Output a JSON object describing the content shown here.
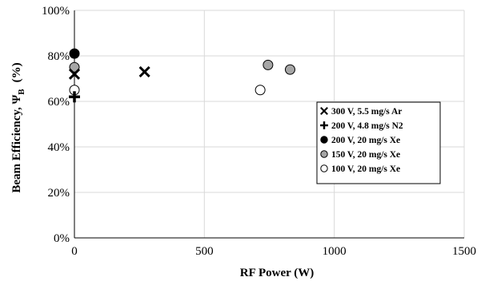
{
  "chart_data": {
    "type": "scatter",
    "xlabel": "RF Power (W)",
    "ylabel": "Beam Efficiency, Ψ",
    "ylabel_subscript": "B",
    "ylabel_unit": "(%)",
    "xlim": [
      0,
      1500
    ],
    "ylim": [
      0,
      100
    ],
    "x_ticks": [
      0,
      500,
      1000,
      1500
    ],
    "y_ticks": [
      0,
      20,
      40,
      60,
      80,
      100
    ],
    "y_tick_labels": [
      "0%",
      "20%",
      "40%",
      "60%",
      "80%",
      "100%"
    ],
    "grid": true,
    "legend_position": "right",
    "series": [
      {
        "name": "300 V, 5.5 mg/s Ar",
        "marker": "x-cross",
        "color": "#000000",
        "points": [
          [
            0,
            72
          ],
          [
            270,
            73
          ]
        ]
      },
      {
        "name": "200 V, 4.8 mg/s N2",
        "marker": "plus",
        "color": "#000000",
        "points": [
          [
            0,
            62
          ]
        ]
      },
      {
        "name": "200 V, 20 mg/s Xe",
        "marker": "circle-filled",
        "color": "#000000",
        "points": [
          [
            0,
            81
          ]
        ]
      },
      {
        "name": "150 V, 20 mg/s Xe",
        "marker": "circle-gray",
        "color": "#a6a6a6",
        "points": [
          [
            0,
            75
          ],
          [
            745,
            76
          ],
          [
            830,
            74
          ]
        ]
      },
      {
        "name": "100 V, 20 mg/s Xe",
        "marker": "circle-open",
        "color": "#ffffff",
        "points": [
          [
            0,
            65
          ],
          [
            715,
            65
          ]
        ]
      }
    ]
  }
}
